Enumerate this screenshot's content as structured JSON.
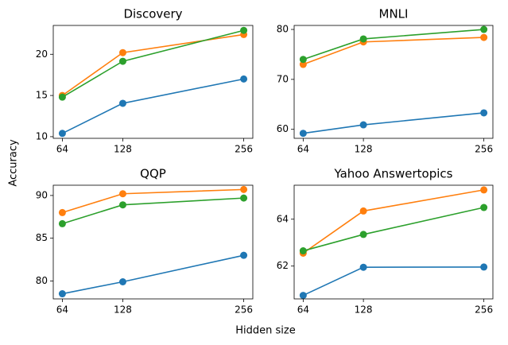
{
  "xlabel": "Hidden size",
  "ylabel": "Accuracy",
  "chart_data": [
    {
      "type": "line",
      "title": "Discovery",
      "x": [
        64,
        128,
        256
      ],
      "xlim": [
        54.4,
        265.6
      ],
      "xticks": [
        64,
        128,
        256
      ],
      "ylim": [
        9.8,
        23.5
      ],
      "yticks": [
        10,
        15,
        20
      ],
      "series": [
        {
          "color": "#1f77b4",
          "values": [
            10.4,
            14.05,
            17.0
          ]
        },
        {
          "color": "#ff7f0e",
          "values": [
            15.0,
            20.2,
            22.4
          ]
        },
        {
          "color": "#2ca02c",
          "values": [
            14.8,
            19.15,
            22.9
          ]
        }
      ]
    },
    {
      "type": "line",
      "title": "MNLI",
      "x": [
        64,
        128,
        256
      ],
      "xlim": [
        54.4,
        265.6
      ],
      "xticks": [
        64,
        128,
        256
      ],
      "ylim": [
        58.2,
        80.8
      ],
      "yticks": [
        60,
        70,
        80
      ],
      "series": [
        {
          "color": "#1f77b4",
          "values": [
            59.2,
            60.9,
            63.3
          ]
        },
        {
          "color": "#ff7f0e",
          "values": [
            73.0,
            77.5,
            78.4
          ]
        },
        {
          "color": "#2ca02c",
          "values": [
            74.0,
            78.1,
            80.0
          ]
        }
      ]
    },
    {
      "type": "line",
      "title": "QQP",
      "x": [
        64,
        128,
        256
      ],
      "xlim": [
        54.4,
        265.6
      ],
      "xticks": [
        64,
        128,
        256
      ],
      "ylim": [
        77.9,
        91.2
      ],
      "yticks": [
        80,
        85,
        90
      ],
      "series": [
        {
          "color": "#1f77b4",
          "values": [
            78.5,
            79.9,
            83.0
          ]
        },
        {
          "color": "#ff7f0e",
          "values": [
            88.0,
            90.2,
            90.7
          ]
        },
        {
          "color": "#2ca02c",
          "values": [
            86.7,
            88.9,
            89.7
          ]
        }
      ]
    },
    {
      "type": "line",
      "title": "Yahoo Answertopics",
      "x": [
        64,
        128,
        256
      ],
      "xlim": [
        54.4,
        265.6
      ],
      "xticks": [
        64,
        128,
        256
      ],
      "ylim": [
        60.6,
        65.45
      ],
      "yticks": [
        62,
        64
      ],
      "series": [
        {
          "color": "#1f77b4",
          "values": [
            60.75,
            61.95,
            61.96
          ]
        },
        {
          "color": "#ff7f0e",
          "values": [
            62.55,
            64.35,
            65.25
          ]
        },
        {
          "color": "#2ca02c",
          "values": [
            62.65,
            63.35,
            64.5
          ]
        }
      ]
    }
  ]
}
